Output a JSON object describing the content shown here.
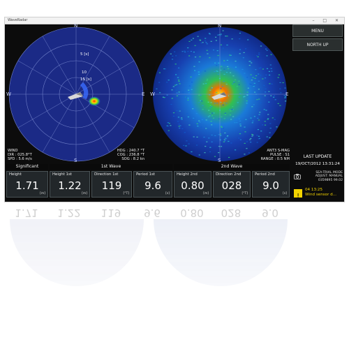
{
  "window": {
    "title": "WaveRadar",
    "controls": "–  □  ✕"
  },
  "left_radar": {
    "compass": {
      "n": "N",
      "s": "S",
      "e": "E",
      "w": "W"
    },
    "ring_label_5": "5 [s]",
    "ring_label_10": "10",
    "ring_label_15": "15 [s]",
    "wind": [
      "WIND",
      "DIR : 025.8°T",
      "SPD : 5.6 m/s"
    ],
    "hdg": [
      "HDG : 240.7 °T",
      "COG : 236.8 °T",
      "SOG : 8.2 kn"
    ]
  },
  "right_radar": {
    "compass": {
      "n": "N",
      "s": "S",
      "e": "E",
      "w": "W"
    },
    "ant": [
      "ANT3 S-MAG",
      "PULSE : S1",
      "RANGE : 0.5 NM"
    ]
  },
  "sidebar": {
    "menu_label": "MENU",
    "north_up_label": "NORTH UP",
    "last_update_label": "LAST UPDATE",
    "last_update_value": "19/OCT/2012 13:31:24",
    "trial": [
      "SEA-TRIAL MODE",
      "ADJUST: MANUAL",
      "0359895 99.02"
    ],
    "alert_time": "04 13:25",
    "alert_text": "Wind sensor d..."
  },
  "readings": {
    "significant_label": "Significant",
    "first_wave_label": "1st Wave",
    "second_wave_label": "2nd Wave",
    "cells": [
      {
        "label": "Height",
        "value": "1.71",
        "unit": "[m]"
      },
      {
        "label": "Height 1st",
        "value": "1.22",
        "unit": "[m]"
      },
      {
        "label": "Direction 1st",
        "value": "119",
        "unit": "[°T]"
      },
      {
        "label": "Period 1st",
        "value": "9.6",
        "unit": "[s]"
      },
      {
        "label": "Height 2nd",
        "value": "0.80",
        "unit": "[m]"
      },
      {
        "label": "Direction 2nd",
        "value": "028",
        "unit": "[°T]"
      },
      {
        "label": "Period 2nd",
        "value": "9.0",
        "unit": "[s]"
      }
    ]
  },
  "colors": {
    "radar_blue": "#1a2a7a",
    "accent_yellow": "#f4d400",
    "cell_bg": "#22272a"
  }
}
